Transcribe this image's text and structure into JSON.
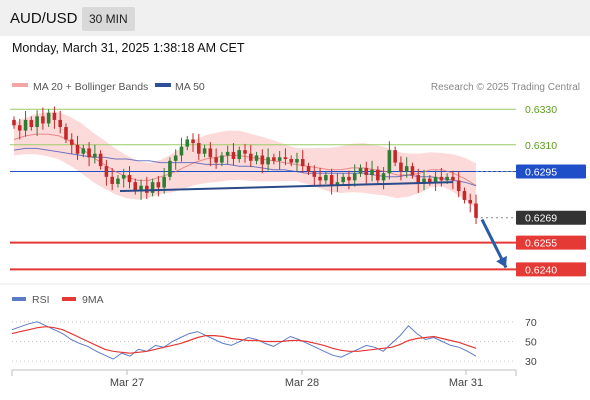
{
  "header": {
    "symbol": "AUD/USD",
    "timeframe": "30 MIN"
  },
  "datetime": "Monday, March 31, 2025 1:38:18 AM CET",
  "legend": {
    "ma20_label": "MA 20 + Bollinger Bands",
    "ma50_label": "MA 50",
    "credit": "Research © 2025 Trading Central"
  },
  "colors": {
    "candle_up": "#2e7d32",
    "candle_down": "#c62828",
    "bollinger_fill": "#fbd4d4",
    "ma20": "#e57373",
    "ma50": "#3f51b5",
    "resistance": "#9ccc65",
    "pivot": "#1f4fc8",
    "support": "#e53935",
    "current": "#333333",
    "arrow": "#2a5ba8",
    "rsi": "#5c7cc9",
    "rsi_ma": "#e53935"
  },
  "rsi_legend": {
    "rsi_label": "RSI",
    "ma_label": "9MA"
  },
  "chart_data": [
    {
      "type": "candlestick",
      "title": "",
      "ylim": [
        0.6234,
        0.6338
      ],
      "x_ticks": [
        "Mar 27",
        "Mar 28",
        "Mar 31"
      ],
      "levels": [
        {
          "name": "resistance-2",
          "value": 0.633,
          "label": "0.6330",
          "style": "resistance"
        },
        {
          "name": "resistance-1",
          "value": 0.631,
          "label": "0.6310",
          "style": "resistance"
        },
        {
          "name": "pivot",
          "value": 0.6295,
          "label": "0.6295",
          "style": "pivot"
        },
        {
          "name": "current-price",
          "value": 0.6269,
          "label": "0.6269",
          "style": "current"
        },
        {
          "name": "support-1",
          "value": 0.6255,
          "label": "0.6255",
          "style": "support"
        },
        {
          "name": "support-2",
          "value": 0.624,
          "label": "0.6240",
          "style": "support"
        }
      ],
      "trendline": {
        "from": [
          0,
          0.6284
        ],
        "to": [
          76,
          0.6289
        ]
      },
      "arrow": {
        "from": [
          80,
          0.6268
        ],
        "to": [
          84,
          0.6241
        ]
      },
      "candles_close": [
        0.6321,
        0.6318,
        0.6324,
        0.632,
        0.6326,
        0.6322,
        0.6328,
        0.6324,
        0.632,
        0.6313,
        0.631,
        0.6305,
        0.6308,
        0.6303,
        0.6305,
        0.6298,
        0.6292,
        0.6288,
        0.6291,
        0.6293,
        0.6289,
        0.6284,
        0.6287,
        0.6283,
        0.6289,
        0.6286,
        0.6292,
        0.6301,
        0.6304,
        0.6309,
        0.6313,
        0.6311,
        0.6305,
        0.6308,
        0.6303,
        0.63,
        0.6304,
        0.6306,
        0.6302,
        0.6307,
        0.6305,
        0.6301,
        0.6304,
        0.6299,
        0.6303,
        0.6301,
        0.6303,
        0.6302,
        0.63,
        0.6302,
        0.6298,
        0.6295,
        0.6292,
        0.629,
        0.6293,
        0.6287,
        0.6289,
        0.6292,
        0.629,
        0.6294,
        0.6297,
        0.6293,
        0.6296,
        0.629,
        0.6294,
        0.6307,
        0.63,
        0.6295,
        0.6298,
        0.6293,
        0.6288,
        0.6291,
        0.6289,
        0.6292,
        0.629,
        0.6292,
        0.629,
        0.6284,
        0.6279,
        0.6277,
        0.6269
      ],
      "ma20": [
        0.6313,
        0.6315,
        0.6316,
        0.6316,
        0.6315,
        0.6312,
        0.6308,
        0.6303,
        0.6299,
        0.6295,
        0.6292,
        0.629,
        0.629,
        0.6292,
        0.6294,
        0.6297,
        0.63,
        0.6302,
        0.6303,
        0.6304,
        0.6304,
        0.6303,
        0.6302,
        0.6301,
        0.63,
        0.6299,
        0.6298,
        0.6297,
        0.6296,
        0.6296,
        0.6297,
        0.6297,
        0.6296,
        0.6295,
        0.6293,
        0.6293,
        0.6294,
        0.6296,
        0.6296,
        0.6294,
        0.6291,
        0.6287
      ],
      "ma50": [
        0.6307,
        0.6308,
        0.6308,
        0.6307,
        0.6306,
        0.6305,
        0.6304,
        0.6303,
        0.6303,
        0.6302,
        0.6302,
        0.6301,
        0.6301,
        0.63,
        0.63,
        0.63,
        0.63,
        0.6299,
        0.6299,
        0.6299,
        0.6298,
        0.6298,
        0.6297,
        0.6296,
        0.6296,
        0.6295,
        0.6294,
        0.6294,
        0.6294,
        0.6294,
        0.6294,
        0.6294,
        0.6293,
        0.6292,
        0.6292,
        0.6293,
        0.6292,
        0.6292,
        0.6291,
        0.629,
        0.6289,
        0.6287
      ]
    },
    {
      "type": "line",
      "title": "",
      "ylim": [
        25,
        80
      ],
      "y_ticks": [
        70,
        50,
        30
      ],
      "series": [
        {
          "name": "RSI",
          "values": [
            62,
            65,
            68,
            70,
            66,
            62,
            58,
            52,
            48,
            45,
            40,
            36,
            32,
            38,
            35,
            42,
            40,
            46,
            44,
            50,
            54,
            58,
            60,
            56,
            52,
            48,
            46,
            50,
            54,
            52,
            48,
            45,
            50,
            55,
            52,
            48,
            44,
            40,
            36,
            34,
            38,
            42,
            46,
            44,
            40,
            48,
            56,
            66,
            58,
            52,
            54,
            50,
            46,
            44,
            40,
            35
          ]
        },
        {
          "name": "9MA",
          "values": [
            58,
            60,
            62,
            64,
            65,
            64,
            62,
            58,
            54,
            50,
            46,
            42,
            40,
            39,
            38,
            39,
            40,
            42,
            44,
            46,
            48,
            51,
            54,
            56,
            56,
            55,
            53,
            52,
            51,
            51,
            50,
            50,
            50,
            51,
            51,
            50,
            48,
            46,
            43,
            41,
            40,
            40,
            41,
            42,
            43,
            44,
            47,
            51,
            53,
            54,
            55,
            53,
            51,
            49,
            46,
            43
          ]
        }
      ]
    }
  ]
}
